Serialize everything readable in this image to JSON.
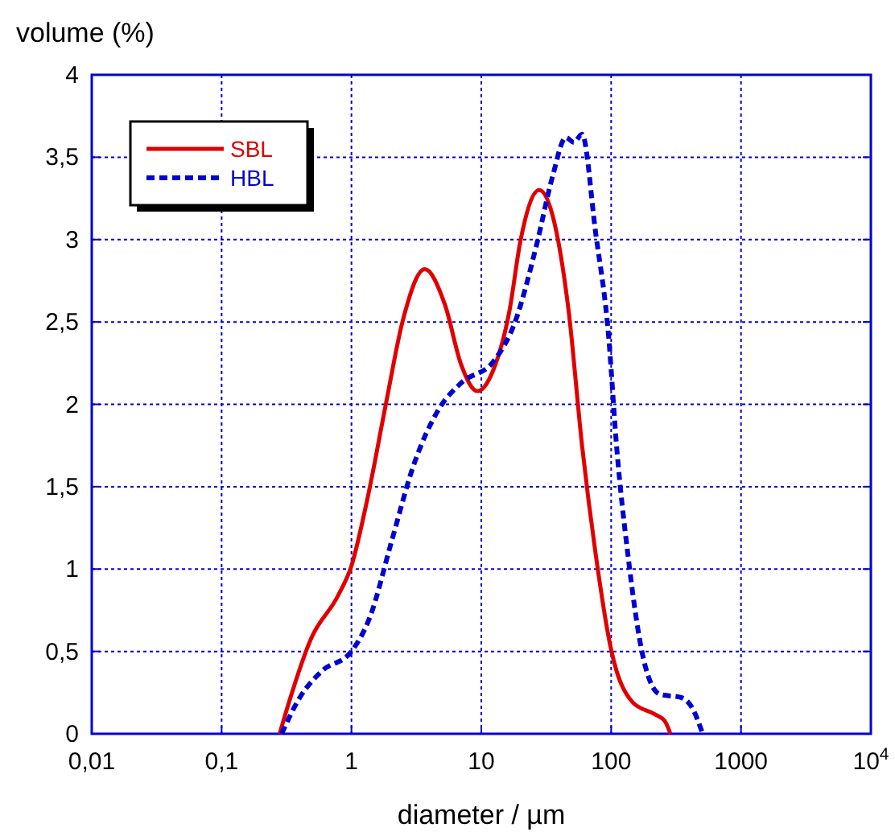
{
  "chart_data": {
    "type": "line",
    "xlabel": "diameter / µm",
    "ylabel": "volume (%)",
    "log": "x",
    "grid": true,
    "legend": "top left",
    "marker": "none",
    "xlim": [
      0.01,
      10000
    ],
    "xticks": [
      {
        "value": 0.01,
        "label": "0,01"
      },
      {
        "value": 0.1,
        "label": "0,1"
      },
      1,
      10,
      100,
      1000,
      {
        "value": 10000,
        "label": "10$^{4}$"
      }
    ],
    "ylim": [
      0,
      4
    ],
    "yticks": [
      0,
      {
        "value": 0.5,
        "label": "0,5"
      },
      1,
      {
        "value": 1.5,
        "label": "1,5"
      },
      2,
      {
        "value": 2.5,
        "label": "2,5"
      },
      3,
      {
        "value": 3.5,
        "label": "3,5"
      },
      4
    ],
    "series": [
      {
        "name": "SBL",
        "color": "#e00000",
        "line_style": "solid",
        "x": [
          0.28,
          0.33,
          0.49,
          0.79,
          1.0,
          1.33,
          1.85,
          2.47,
          3.67,
          5.27,
          7.0,
          9.33,
          12.4,
          16.5,
          20,
          27.9,
          35.3,
          47,
          59.7,
          75.7,
          100,
          147,
          215,
          260,
          286
        ],
        "values": [
          0,
          0.19,
          0.58,
          0.84,
          1.02,
          1.43,
          2.01,
          2.5,
          2.82,
          2.6,
          2.24,
          2.08,
          2.21,
          2.57,
          2.99,
          3.3,
          3.15,
          2.57,
          1.75,
          1.1,
          0.51,
          0.19,
          0.12,
          0.075,
          0
        ]
      },
      {
        "name": "HBL",
        "color": "#0000d0",
        "line_style": "dashed",
        "x": [
          0.29,
          0.4,
          0.59,
          1.0,
          1.39,
          2.04,
          2.98,
          4.79,
          7.0,
          12.4,
          18.2,
          26.5,
          35.3,
          44.8,
          51.7,
          59.7,
          75.7,
          95.9,
          110,
          134,
          178,
          237,
          346,
          419,
          507
        ],
        "values": [
          0,
          0.22,
          0.38,
          0.5,
          0.71,
          1.17,
          1.62,
          1.98,
          2.13,
          2.26,
          2.5,
          2.96,
          3.38,
          3.62,
          3.59,
          3.64,
          3.05,
          2.4,
          1.75,
          1.1,
          0.45,
          0.24,
          0.22,
          0.16,
          0
        ]
      }
    ]
  }
}
